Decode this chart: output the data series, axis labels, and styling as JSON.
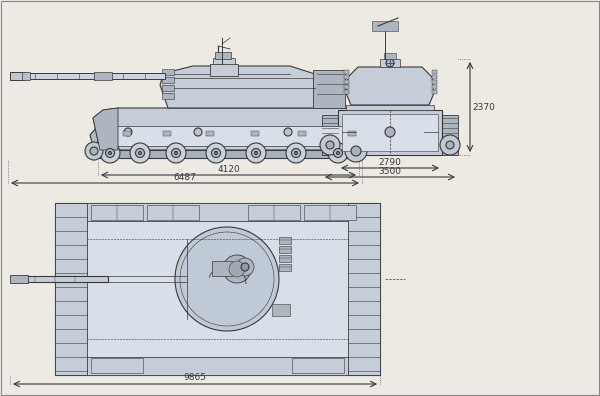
{
  "bg_color": "#ede9e3",
  "lc": "#3a3a3a",
  "fc_main": "#c5cdd8",
  "fc_dark": "#adb6c0",
  "fc_light": "#d8dfe8",
  "dims": {
    "side_hull": "4120",
    "side_total": "6487",
    "front_w1": "2790",
    "front_w2": "3500",
    "front_h": "2370",
    "top_total": "9865"
  }
}
